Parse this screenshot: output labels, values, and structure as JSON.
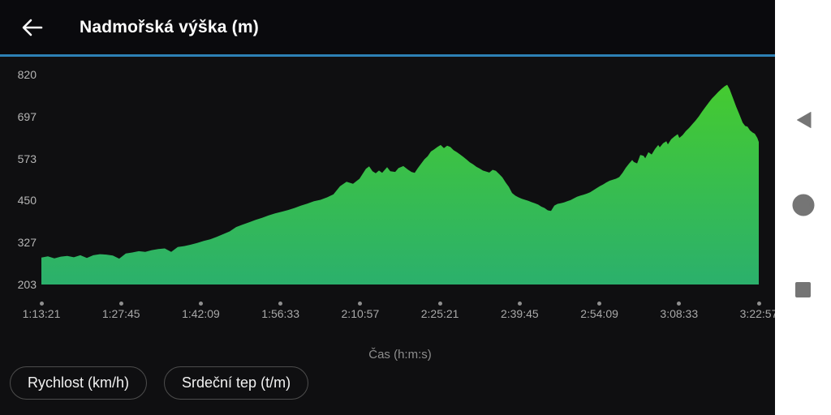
{
  "header": {
    "title": "Nadmořská výška (m)",
    "back_icon": "arrow-left",
    "accent_color": "#2d81b5"
  },
  "chart_data": {
    "type": "area",
    "title": "Nadmořská výška (m)",
    "xlabel": "Čas (h:m:s)",
    "ylabel": "Nadmořská výška (m)",
    "y_ticks": [
      820,
      697,
      573,
      450,
      327,
      203
    ],
    "ylim": [
      203,
      820
    ],
    "x_ticks": [
      "1:13:21",
      "1:27:45",
      "1:42:09",
      "1:56:33",
      "2:10:57",
      "2:25:21",
      "2:39:45",
      "2:54:09",
      "3:08:33",
      "3:22:57"
    ],
    "grid": false,
    "legend": "none",
    "fill_top": "#46cc2d",
    "fill_bottom": "#2bb06c",
    "series": [
      {
        "name": "elevation_m_over_time_s",
        "points": [
          [
            4401,
            282
          ],
          [
            4471,
            286
          ],
          [
            4542,
            280
          ],
          [
            4612,
            285
          ],
          [
            4682,
            287
          ],
          [
            4753,
            283
          ],
          [
            4823,
            289
          ],
          [
            4894,
            281
          ],
          [
            4964,
            289
          ],
          [
            5034,
            292
          ],
          [
            5105,
            291
          ],
          [
            5175,
            288
          ],
          [
            5245,
            279
          ],
          [
            5316,
            294
          ],
          [
            5386,
            297
          ],
          [
            5457,
            301
          ],
          [
            5527,
            299
          ],
          [
            5597,
            304
          ],
          [
            5668,
            307
          ],
          [
            5738,
            309
          ],
          [
            5808,
            299
          ],
          [
            5879,
            313
          ],
          [
            5949,
            316
          ],
          [
            6019,
            320
          ],
          [
            6090,
            325
          ],
          [
            6160,
            331
          ],
          [
            6231,
            336
          ],
          [
            6301,
            343
          ],
          [
            6371,
            351
          ],
          [
            6442,
            359
          ],
          [
            6512,
            372
          ],
          [
            6582,
            379
          ],
          [
            6653,
            386
          ],
          [
            6723,
            393
          ],
          [
            6793,
            399
          ],
          [
            6864,
            406
          ],
          [
            6934,
            412
          ],
          [
            7005,
            417
          ],
          [
            7075,
            422
          ],
          [
            7145,
            428
          ],
          [
            7216,
            435
          ],
          [
            7286,
            441
          ],
          [
            7356,
            448
          ],
          [
            7427,
            452
          ],
          [
            7497,
            459
          ],
          [
            7567,
            468
          ],
          [
            7638,
            492
          ],
          [
            7708,
            505
          ],
          [
            7779,
            499
          ],
          [
            7849,
            514
          ],
          [
            7919,
            543
          ],
          [
            7954,
            550
          ],
          [
            7990,
            536
          ],
          [
            8025,
            530
          ],
          [
            8060,
            538
          ],
          [
            8095,
            531
          ],
          [
            8148,
            548
          ],
          [
            8183,
            536
          ],
          [
            8236,
            534
          ],
          [
            8271,
            545
          ],
          [
            8324,
            551
          ],
          [
            8377,
            540
          ],
          [
            8412,
            534
          ],
          [
            8447,
            531
          ],
          [
            8482,
            545
          ],
          [
            8517,
            558
          ],
          [
            8553,
            571
          ],
          [
            8588,
            580
          ],
          [
            8623,
            594
          ],
          [
            8658,
            600
          ],
          [
            8693,
            607
          ],
          [
            8729,
            613
          ],
          [
            8764,
            604
          ],
          [
            8799,
            611
          ],
          [
            8834,
            607
          ],
          [
            8869,
            598
          ],
          [
            8905,
            592
          ],
          [
            8940,
            585
          ],
          [
            8975,
            578
          ],
          [
            9010,
            570
          ],
          [
            9045,
            562
          ],
          [
            9081,
            556
          ],
          [
            9116,
            549
          ],
          [
            9151,
            544
          ],
          [
            9186,
            538
          ],
          [
            9221,
            535
          ],
          [
            9257,
            532
          ],
          [
            9292,
            540
          ],
          [
            9327,
            537
          ],
          [
            9362,
            528
          ],
          [
            9397,
            518
          ],
          [
            9433,
            503
          ],
          [
            9468,
            490
          ],
          [
            9503,
            472
          ],
          [
            9538,
            464
          ],
          [
            9573,
            459
          ],
          [
            9609,
            455
          ],
          [
            9644,
            452
          ],
          [
            9679,
            449
          ],
          [
            9714,
            445
          ],
          [
            9749,
            442
          ],
          [
            9785,
            438
          ],
          [
            9820,
            432
          ],
          [
            9855,
            428
          ],
          [
            9890,
            421
          ],
          [
            9925,
            419
          ],
          [
            9961,
            435
          ],
          [
            9996,
            440
          ],
          [
            10031,
            442
          ],
          [
            10066,
            444
          ],
          [
            10101,
            448
          ],
          [
            10137,
            451
          ],
          [
            10172,
            456
          ],
          [
            10207,
            461
          ],
          [
            10242,
            464
          ],
          [
            10277,
            467
          ],
          [
            10313,
            470
          ],
          [
            10348,
            474
          ],
          [
            10383,
            480
          ],
          [
            10418,
            486
          ],
          [
            10453,
            492
          ],
          [
            10489,
            497
          ],
          [
            10524,
            503
          ],
          [
            10559,
            508
          ],
          [
            10594,
            511
          ],
          [
            10629,
            514
          ],
          [
            10665,
            519
          ],
          [
            10700,
            531
          ],
          [
            10735,
            546
          ],
          [
            10770,
            558
          ],
          [
            10805,
            569
          ],
          [
            10823,
            563
          ],
          [
            10858,
            559
          ],
          [
            10893,
            584
          ],
          [
            10928,
            581
          ],
          [
            10946,
            574
          ],
          [
            10981,
            592
          ],
          [
            11016,
            585
          ],
          [
            11052,
            601
          ],
          [
            11087,
            613
          ],
          [
            11104,
            606
          ],
          [
            11140,
            618
          ],
          [
            11175,
            624
          ],
          [
            11192,
            615
          ],
          [
            11228,
            630
          ],
          [
            11263,
            638
          ],
          [
            11298,
            645
          ],
          [
            11316,
            634
          ],
          [
            11351,
            642
          ],
          [
            11386,
            654
          ],
          [
            11421,
            663
          ],
          [
            11457,
            674
          ],
          [
            11492,
            685
          ],
          [
            11527,
            697
          ],
          [
            11562,
            711
          ],
          [
            11597,
            724
          ],
          [
            11633,
            737
          ],
          [
            11668,
            749
          ],
          [
            11703,
            759
          ],
          [
            11738,
            769
          ],
          [
            11773,
            778
          ],
          [
            11809,
            786
          ],
          [
            11835,
            790
          ],
          [
            11861,
            777
          ],
          [
            11897,
            751
          ],
          [
            11932,
            726
          ],
          [
            11967,
            703
          ],
          [
            12002,
            679
          ],
          [
            12029,
            669
          ],
          [
            12055,
            667
          ],
          [
            12081,
            656
          ],
          [
            12108,
            650
          ],
          [
            12134,
            646
          ],
          [
            12161,
            634
          ],
          [
            12177,
            622
          ]
        ]
      }
    ]
  },
  "buttons": {
    "speed_label": "Rychlost (km/h)",
    "heart_rate_label": "Srdeční tep (t/m)"
  },
  "nav_bar": {
    "bg_color": "#ffffff",
    "icon_color": "#757575",
    "back": "back-triangle",
    "home": "home-circle",
    "recents": "recents-square"
  }
}
